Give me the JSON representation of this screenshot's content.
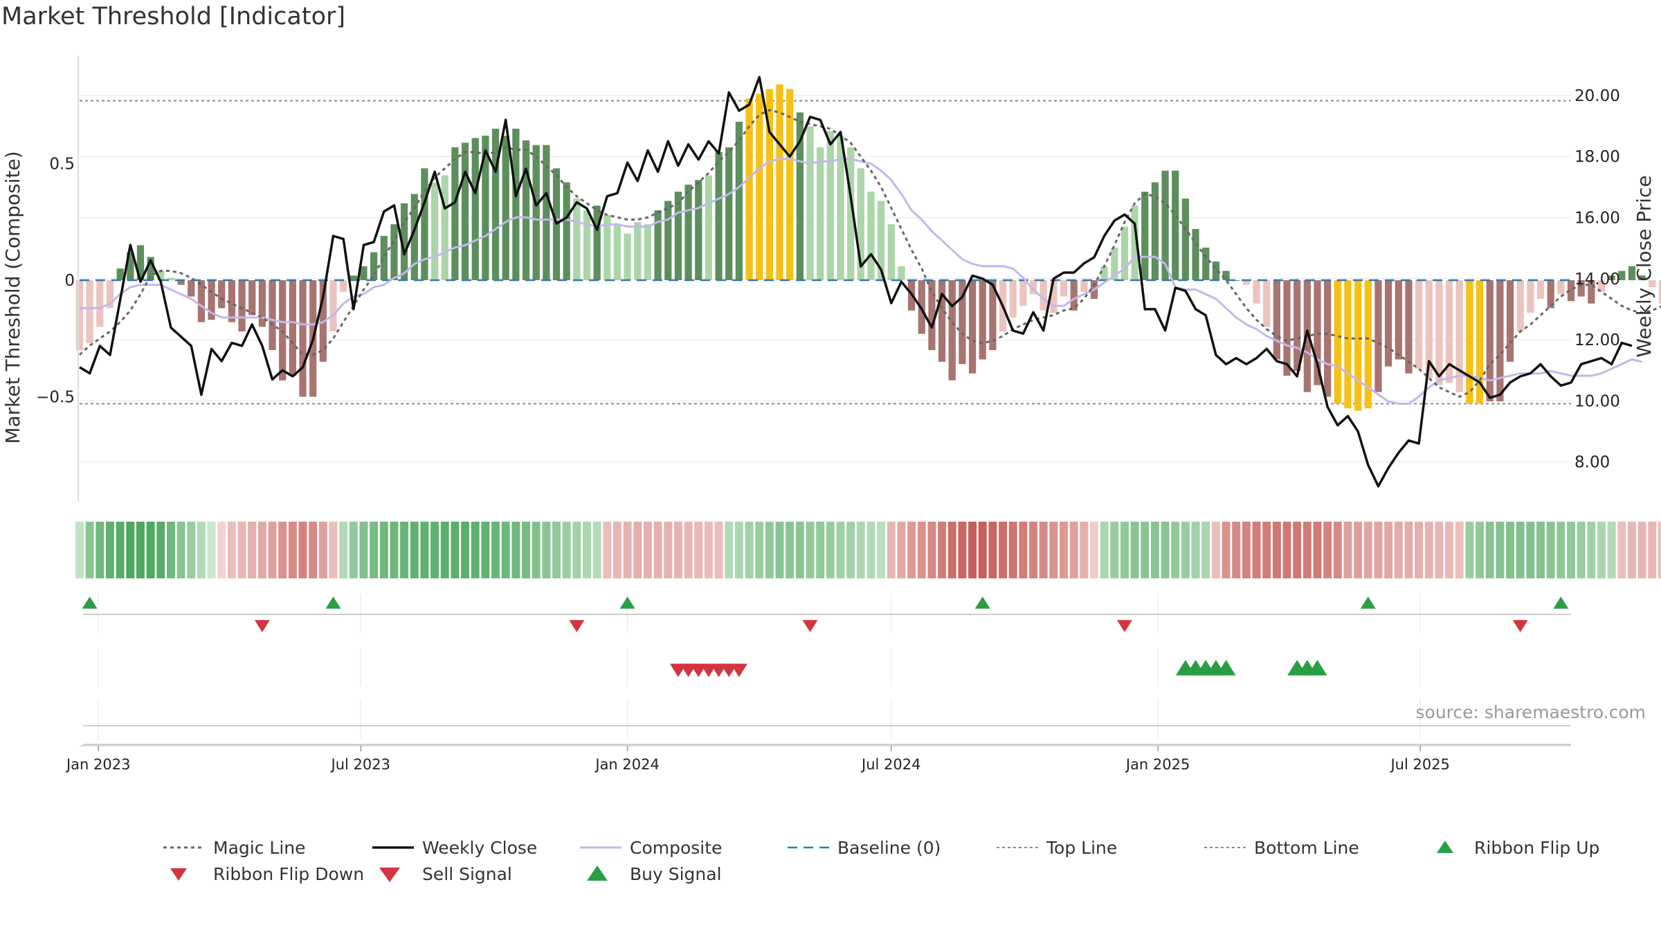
{
  "page": {
    "title": "Market Threshold [Indicator]",
    "source": "source: sharemaestro.com"
  },
  "colors": {
    "pos_dark": "#5d8f5d",
    "pos_light": "#abd6a8",
    "neg_dark": "#a87470",
    "neg_light": "#ecc3bf",
    "extreme": "#f5c116",
    "close": "#111111",
    "composite": "#c2b8ea",
    "magic": "#666666",
    "baseline": "#2e7bb0",
    "ref": "#888888",
    "buy": "#2a9e45",
    "sell": "#d43340"
  },
  "chart_data": {
    "type": "bar",
    "x_labels": [
      "Jan 2023",
      "Jul 2023",
      "Jan 2024",
      "Jul 2024",
      "Jan 2025",
      "Jul 2025"
    ],
    "x_range": [
      "2022-12-19",
      "2025-10-13"
    ],
    "left_axis": {
      "label": "Market Threshold (Composite)",
      "ticks": [
        "0.5",
        "0",
        "−0.5"
      ],
      "range": [
        -0.95,
        0.95
      ]
    },
    "right_axis": {
      "label": "Weekly Close Price",
      "ticks": [
        "8.00",
        "10.00",
        "12.00",
        "14.00",
        "16.00",
        "18.00",
        "20.00"
      ],
      "range": [
        6.7,
        21.2
      ]
    },
    "top_line": 0.77,
    "bottom_line": -0.53,
    "baseline": 0,
    "composite_bars": [
      -0.3,
      -0.27,
      -0.2,
      -0.12,
      0.05,
      0.12,
      0.15,
      0.1,
      0.04,
      0.01,
      -0.02,
      -0.07,
      -0.18,
      -0.17,
      -0.12,
      -0.18,
      -0.22,
      -0.15,
      -0.2,
      -0.3,
      -0.43,
      -0.41,
      -0.5,
      -0.5,
      -0.35,
      -0.22,
      -0.05,
      0.02,
      0.06,
      0.12,
      0.19,
      0.24,
      0.33,
      0.37,
      0.48,
      0.42,
      0.45,
      0.57,
      0.59,
      0.61,
      0.62,
      0.65,
      0.62,
      0.65,
      0.6,
      0.58,
      0.58,
      0.48,
      0.42,
      0.35,
      0.3,
      0.32,
      0.28,
      0.24,
      0.2,
      0.25,
      0.24,
      0.3,
      0.34,
      0.38,
      0.41,
      0.43,
      0.45,
      0.55,
      0.57,
      0.68,
      0.78,
      0.8,
      0.82,
      0.84,
      0.82,
      0.72,
      0.66,
      0.57,
      0.64,
      0.62,
      0.57,
      0.48,
      0.38,
      0.34,
      0.24,
      0.06,
      -0.13,
      -0.23,
      -0.3,
      -0.35,
      -0.43,
      -0.36,
      -0.4,
      -0.34,
      -0.3,
      -0.22,
      -0.16,
      -0.11,
      -0.06,
      -0.13,
      -0.14,
      -0.07,
      -0.13,
      -0.05,
      -0.08,
      0.06,
      0.14,
      0.23,
      0.32,
      0.38,
      0.42,
      0.47,
      0.47,
      0.35,
      0.22,
      0.14,
      0.08,
      0.04,
      0.0,
      -0.02,
      -0.1,
      -0.2,
      -0.34,
      -0.41,
      -0.39,
      -0.48,
      -0.45,
      -0.5,
      -0.53,
      -0.55,
      -0.56,
      -0.55,
      -0.48,
      -0.37,
      -0.34,
      -0.4,
      -0.38,
      -0.42,
      -0.45,
      -0.44,
      -0.48,
      -0.53,
      -0.53,
      -0.52,
      -0.52,
      -0.35,
      -0.22,
      -0.14,
      -0.08,
      -0.12,
      -0.06,
      -0.09,
      -0.07,
      -0.1,
      -0.05,
      0.02,
      0.04,
      0.06,
      0.02,
      -0.03,
      -0.1,
      -0.15,
      -0.14,
      -0.15,
      -0.18,
      -0.16,
      -0.08,
      -0.04
    ],
    "composite_line": [
      -0.12,
      -0.12,
      -0.12,
      -0.1,
      -0.06,
      -0.03,
      -0.02,
      -0.02,
      -0.02,
      -0.04,
      -0.06,
      -0.08,
      -0.11,
      -0.14,
      -0.16,
      -0.16,
      -0.16,
      -0.16,
      -0.16,
      -0.17,
      -0.18,
      -0.18,
      -0.19,
      -0.19,
      -0.18,
      -0.15,
      -0.1,
      -0.07,
      -0.06,
      -0.03,
      -0.02,
      0.01,
      0.03,
      0.07,
      0.09,
      0.1,
      0.12,
      0.14,
      0.15,
      0.17,
      0.19,
      0.22,
      0.25,
      0.27,
      0.27,
      0.26,
      0.26,
      0.26,
      0.26,
      0.25,
      0.24,
      0.23,
      0.24,
      0.24,
      0.23,
      0.23,
      0.23,
      0.25,
      0.26,
      0.29,
      0.3,
      0.31,
      0.33,
      0.35,
      0.37,
      0.4,
      0.44,
      0.48,
      0.51,
      0.52,
      0.52,
      0.51,
      0.5,
      0.51,
      0.51,
      0.52,
      0.52,
      0.51,
      0.5,
      0.47,
      0.43,
      0.37,
      0.3,
      0.26,
      0.21,
      0.17,
      0.13,
      0.09,
      0.07,
      0.06,
      0.06,
      0.06,
      0.05,
      0.01,
      -0.04,
      -0.08,
      -0.11,
      -0.11,
      -0.08,
      -0.06,
      -0.04,
      -0.01,
      0.02,
      0.05,
      0.1,
      0.1,
      0.1,
      0.07,
      -0.03,
      -0.04,
      -0.04,
      -0.06,
      -0.08,
      -0.12,
      -0.16,
      -0.19,
      -0.21,
      -0.24,
      -0.26,
      -0.28,
      -0.29,
      -0.31,
      -0.34,
      -0.36,
      -0.37,
      -0.4,
      -0.43,
      -0.46,
      -0.49,
      -0.52,
      -0.53,
      -0.53,
      -0.5,
      -0.46,
      -0.43,
      -0.42,
      -0.41,
      -0.41,
      -0.42,
      -0.43,
      -0.42,
      -0.41,
      -0.4,
      -0.4,
      -0.4,
      -0.39,
      -0.4,
      -0.41,
      -0.41,
      -0.41,
      -0.4,
      -0.38,
      -0.36,
      -0.34,
      -0.35
    ],
    "magic_line": [
      -0.32,
      -0.28,
      -0.25,
      -0.22,
      -0.18,
      -0.13,
      -0.06,
      0.02,
      0.04,
      0.04,
      0.03,
      0.01,
      -0.02,
      -0.05,
      -0.08,
      -0.1,
      -0.12,
      -0.14,
      -0.16,
      -0.19,
      -0.22,
      -0.27,
      -0.32,
      -0.32,
      -0.3,
      -0.25,
      -0.18,
      -0.11,
      -0.04,
      0.02,
      0.1,
      0.17,
      0.25,
      0.31,
      0.38,
      0.44,
      0.48,
      0.52,
      0.55,
      0.55,
      0.54,
      0.55,
      0.57,
      0.56,
      0.56,
      0.53,
      0.49,
      0.45,
      0.4,
      0.36,
      0.33,
      0.3,
      0.28,
      0.27,
      0.26,
      0.26,
      0.27,
      0.29,
      0.31,
      0.33,
      0.38,
      0.42,
      0.46,
      0.51,
      0.55,
      0.6,
      0.66,
      0.71,
      0.73,
      0.72,
      0.7,
      0.68,
      0.67,
      0.66,
      0.65,
      0.62,
      0.59,
      0.53,
      0.47,
      0.4,
      0.31,
      0.22,
      0.13,
      0.05,
      -0.05,
      -0.12,
      -0.18,
      -0.23,
      -0.26,
      -0.27,
      -0.26,
      -0.24,
      -0.21,
      -0.19,
      -0.17,
      -0.16,
      -0.15,
      -0.13,
      -0.12,
      -0.08,
      -0.02,
      0.06,
      0.15,
      0.25,
      0.33,
      0.37,
      0.36,
      0.33,
      0.28,
      0.22,
      0.16,
      0.1,
      0.05,
      0.0,
      -0.06,
      -0.12,
      -0.17,
      -0.21,
      -0.24,
      -0.26,
      -0.25,
      -0.24,
      -0.23,
      -0.23,
      -0.24,
      -0.25,
      -0.25,
      -0.25,
      -0.27,
      -0.29,
      -0.32,
      -0.35,
      -0.38,
      -0.42,
      -0.46,
      -0.48,
      -0.5,
      -0.48,
      -0.43,
      -0.36,
      -0.32,
      -0.27,
      -0.22,
      -0.19,
      -0.15,
      -0.11,
      -0.07,
      -0.04,
      -0.02,
      -0.02,
      -0.05,
      -0.08,
      -0.11,
      -0.13,
      -0.14,
      -0.13,
      -0.11
    ],
    "weekly_close": [
      11.1,
      10.9,
      11.8,
      11.5,
      13.3,
      15.1,
      13.9,
      14.6,
      13.9,
      12.4,
      12.1,
      11.8,
      10.2,
      11.7,
      11.3,
      11.9,
      11.8,
      12.5,
      11.8,
      10.7,
      11.0,
      10.8,
      11.1,
      12.0,
      13.4,
      15.4,
      15.3,
      13.0,
      15.1,
      15.2,
      16.2,
      16.4,
      14.8,
      15.6,
      16.5,
      17.5,
      16.3,
      16.5,
      17.5,
      16.8,
      18.2,
      17.5,
      19.2,
      16.7,
      17.6,
      16.4,
      16.8,
      15.8,
      16.0,
      16.5,
      16.3,
      15.6,
      16.7,
      16.8,
      17.8,
      17.2,
      18.2,
      17.5,
      18.5,
      17.7,
      18.4,
      17.9,
      18.5,
      18.1,
      20.1,
      19.5,
      19.7,
      20.6,
      18.8,
      18.4,
      18.0,
      18.5,
      19.3,
      19.2,
      18.4,
      18.8,
      16.7,
      14.4,
      14.8,
      14.3,
      13.2,
      13.9,
      13.5,
      13.0,
      12.4,
      13.5,
      13.1,
      13.4,
      14.1,
      14.0,
      13.8,
      13.1,
      12.3,
      12.2,
      12.9,
      12.3,
      14.0,
      14.2,
      14.2,
      14.5,
      14.7,
      15.4,
      15.9,
      16.1,
      15.8,
      13.0,
      13.0,
      12.3,
      13.7,
      13.6,
      13.0,
      12.8,
      11.5,
      11.2,
      11.4,
      11.2,
      11.4,
      11.7,
      11.3,
      11.2,
      10.8,
      12.3,
      11.2,
      9.8,
      9.2,
      9.5,
      9.0,
      7.9,
      7.2,
      7.8,
      8.3,
      8.7,
      8.6,
      11.3,
      10.8,
      11.2,
      11.0,
      10.8,
      10.6,
      10.1,
      10.2,
      10.6,
      10.8,
      10.9,
      11.2,
      10.8,
      10.5,
      10.6,
      11.2,
      11.3,
      11.4,
      11.2,
      11.9,
      11.8
    ],
    "ribbon": [
      0.2,
      0.55,
      0.7,
      0.8,
      0.85,
      0.9,
      0.9,
      0.9,
      0.85,
      0.7,
      0.55,
      0.45,
      0.3,
      0.15,
      -0.1,
      -0.25,
      -0.3,
      -0.35,
      -0.4,
      -0.45,
      -0.55,
      -0.6,
      -0.65,
      -0.6,
      -0.45,
      -0.25,
      0.3,
      0.5,
      0.6,
      0.65,
      0.7,
      0.72,
      0.75,
      0.78,
      0.8,
      0.8,
      0.82,
      0.82,
      0.82,
      0.8,
      0.78,
      0.75,
      0.72,
      0.7,
      0.65,
      0.6,
      0.55,
      0.5,
      0.45,
      0.4,
      0.35,
      0.3,
      -0.25,
      -0.3,
      -0.32,
      -0.35,
      -0.35,
      -0.35,
      -0.33,
      -0.32,
      -0.3,
      -0.28,
      -0.26,
      -0.25,
      0.3,
      0.35,
      0.4,
      0.45,
      0.5,
      0.55,
      0.55,
      0.55,
      0.5,
      0.5,
      0.45,
      0.42,
      0.4,
      0.35,
      0.3,
      0.25,
      -0.3,
      -0.4,
      -0.5,
      -0.55,
      -0.6,
      -0.7,
      -0.8,
      -0.85,
      -0.9,
      -0.9,
      -0.85,
      -0.8,
      -0.75,
      -0.7,
      -0.65,
      -0.6,
      -0.55,
      -0.5,
      -0.45,
      -0.35,
      -0.15,
      0.35,
      0.45,
      0.5,
      0.55,
      0.55,
      0.55,
      0.55,
      0.5,
      0.45,
      0.4,
      0.35,
      -0.25,
      -0.55,
      -0.6,
      -0.65,
      -0.7,
      -0.7,
      -0.72,
      -0.72,
      -0.72,
      -0.7,
      -0.7,
      -0.65,
      -0.6,
      -0.45,
      -0.45,
      -0.42,
      -0.42,
      -0.4,
      -0.38,
      -0.36,
      -0.35,
      -0.32,
      -0.3,
      -0.28,
      -0.25,
      0.45,
      0.5,
      0.55,
      0.58,
      0.6,
      0.6,
      0.6,
      0.58,
      0.55,
      0.52,
      0.5,
      0.45,
      0.4,
      0.35,
      0.3,
      -0.25,
      -0.3,
      -0.3,
      -0.3,
      -0.25,
      0.3
    ],
    "ribbon_flip_up": [
      "2022-12-26",
      "2023-06-12",
      "2024-01-01",
      "2024-09-02",
      "2025-05-26",
      "2025-10-06"
    ],
    "ribbon_flip_down": [
      "2023-04-24",
      "2023-11-27",
      "2024-05-06",
      "2024-12-09",
      "2025-09-08"
    ],
    "sell_signal": [
      "2024-02-05",
      "2024-02-12",
      "2024-02-19",
      "2024-02-26",
      "2024-03-04",
      "2024-03-11",
      "2024-03-18"
    ],
    "buy_signal": [
      "2025-01-20",
      "2025-01-27",
      "2025-02-03",
      "2025-02-10",
      "2025-02-17",
      "2025-04-07",
      "2025-04-14",
      "2025-04-21"
    ]
  },
  "legend": [
    {
      "key": "magic",
      "label": "Magic Line"
    },
    {
      "key": "close",
      "label": "Weekly Close"
    },
    {
      "key": "composite",
      "label": "Composite"
    },
    {
      "key": "baseline",
      "label": "Baseline (0)"
    },
    {
      "key": "top",
      "label": "Top Line"
    },
    {
      "key": "bottom",
      "label": "Bottom Line"
    },
    {
      "key": "flip_up",
      "label": "Ribbon Flip Up"
    },
    {
      "key": "flip_down",
      "label": "Ribbon Flip Down"
    },
    {
      "key": "sell",
      "label": "Sell Signal"
    },
    {
      "key": "buy",
      "label": "Buy Signal"
    }
  ]
}
